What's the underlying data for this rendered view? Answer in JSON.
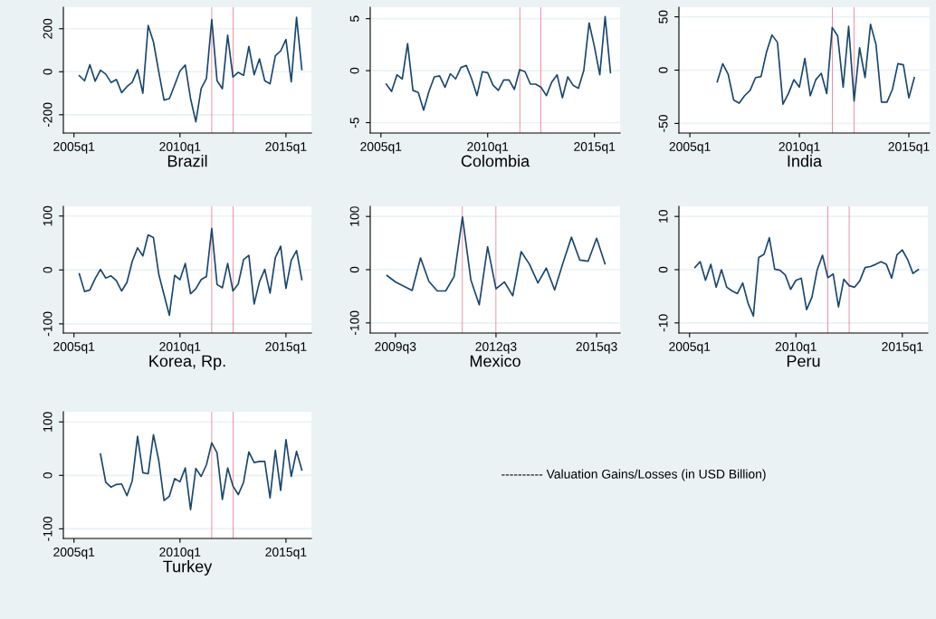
{
  "chart_data": [
    {
      "type": "line",
      "xlabel": "Brazil",
      "color": "#1a476f",
      "grid": "y",
      "ylim": [
        -285,
        300
      ],
      "yticks": [
        -200,
        0,
        200
      ],
      "categories": [
        "2005q1",
        null,
        null,
        null,
        null,
        null,
        null,
        null,
        null,
        null,
        null,
        null,
        null,
        null,
        null,
        null,
        null,
        null,
        null,
        null,
        "2010q1",
        null,
        null,
        null,
        null,
        null,
        null,
        null,
        null,
        null,
        null,
        null,
        null,
        null,
        null,
        null,
        null,
        null,
        null,
        null,
        "2015q1",
        null,
        null,
        null
      ],
      "values": [
        null,
        -18,
        -42,
        33,
        -44,
        7,
        -11,
        -50,
        -36,
        -97,
        -69,
        -49,
        10,
        -100,
        215,
        139,
        0,
        -132,
        -125,
        -62,
        3,
        31,
        -125,
        -233,
        -78,
        -31,
        243,
        -42,
        -79,
        170,
        -25,
        -3,
        -17,
        118,
        -14,
        60,
        -42,
        -56,
        74,
        97,
        150,
        -47,
        253,
        10
      ]
    },
    {
      "type": "line",
      "xlabel": "Colombia",
      "color": "#1a476f",
      "grid": "y",
      "ylim": [
        -6,
        6.1
      ],
      "yticks": [
        -5,
        0,
        5
      ],
      "categories": [
        "2005q1",
        null,
        null,
        null,
        null,
        null,
        null,
        null,
        null,
        null,
        null,
        null,
        null,
        null,
        null,
        null,
        null,
        null,
        null,
        null,
        "2010q1",
        null,
        null,
        null,
        null,
        null,
        null,
        null,
        null,
        null,
        null,
        null,
        null,
        null,
        null,
        null,
        null,
        null,
        null,
        null,
        "2015q1",
        null,
        null,
        null
      ],
      "values": [
        null,
        -1.3,
        -2.0,
        -0.4,
        -0.8,
        2.6,
        -1.9,
        -2.1,
        -3.8,
        -2.0,
        -0.6,
        -0.5,
        -1.6,
        -0.3,
        -0.8,
        0.3,
        0.5,
        -0.8,
        -2.4,
        -0.1,
        -0.2,
        -1.4,
        -1.9,
        -0.9,
        -0.9,
        -1.8,
        0.1,
        -0.1,
        -1.3,
        -1.3,
        -1.6,
        -2.4,
        -1.1,
        -0.4,
        -2.6,
        -0.6,
        -1.4,
        -1.7,
        0,
        4.6,
        2.3,
        -0.4,
        5.2,
        -0.2
      ]
    },
    {
      "type": "line",
      "xlabel": "India",
      "color": "#1a476f",
      "grid": "y",
      "ylim": [
        -59,
        59
      ],
      "yticks": [
        -50,
        0,
        50
      ],
      "categories": [
        "2005q1",
        null,
        null,
        null,
        null,
        null,
        null,
        null,
        null,
        null,
        null,
        null,
        null,
        null,
        null,
        null,
        null,
        null,
        null,
        null,
        "2010q1",
        null,
        null,
        null,
        null,
        null,
        null,
        null,
        null,
        null,
        null,
        null,
        null,
        null,
        null,
        null,
        null,
        null,
        null,
        null,
        "2015q1",
        null,
        null
      ],
      "values": [
        null,
        null,
        null,
        null,
        null,
        -11,
        6,
        -4,
        -28,
        -31,
        -24,
        -19,
        -7,
        -6,
        17,
        33,
        26,
        -32,
        -22,
        -9,
        -16,
        11,
        -24,
        -9,
        -3,
        -22,
        40,
        32,
        -16,
        41,
        -29,
        21,
        -7,
        43,
        24,
        -30,
        -30,
        -18,
        6,
        5,
        -26,
        -7,
        null
      ]
    },
    {
      "type": "line",
      "xlabel": "Korea, Rp.",
      "color": "#1a476f",
      "grid": "y",
      "ylim": [
        -117,
        118
      ],
      "yticks": [
        -100,
        0,
        100
      ],
      "categories": [
        "2005q1",
        null,
        null,
        null,
        null,
        null,
        null,
        null,
        null,
        null,
        null,
        null,
        null,
        null,
        null,
        null,
        null,
        null,
        null,
        null,
        "2010q1",
        null,
        null,
        null,
        null,
        null,
        null,
        null,
        null,
        null,
        null,
        null,
        null,
        null,
        null,
        null,
        null,
        null,
        null,
        null,
        "2015q1",
        null,
        null,
        null
      ],
      "values": [
        null,
        -7,
        -40,
        -37,
        -16,
        1,
        -15,
        -11,
        -20,
        -39,
        -23,
        16,
        41,
        26,
        65,
        60,
        -8,
        -46,
        -84,
        -10,
        -18,
        12,
        -44,
        -35,
        -18,
        -12,
        77,
        -27,
        -33,
        12,
        -39,
        -26,
        19,
        27,
        -63,
        -22,
        1,
        -43,
        23,
        44,
        -34,
        18,
        36,
        -18
      ]
    },
    {
      "type": "line",
      "xlabel": "Mexico",
      "color": "#1a476f",
      "grid": "y",
      "ylim": [
        -119,
        119
      ],
      "yticks": [
        -100,
        0,
        100
      ],
      "categories": [
        null,
        "2009q3",
        null,
        null,
        null,
        null,
        null,
        null,
        null,
        null,
        null,
        null,
        null,
        "2012q3",
        null,
        null,
        null,
        null,
        null,
        null,
        null,
        null,
        null,
        null,
        null,
        "2015q3",
        null
      ],
      "values": [
        -11,
        -23,
        -31,
        -39,
        22,
        -22,
        -40,
        -40,
        -13,
        99,
        -19,
        -66,
        43,
        -36,
        -23,
        -49,
        34,
        10,
        -25,
        3,
        -38,
        13,
        61,
        18,
        16,
        59,
        11
      ]
    },
    {
      "type": "line",
      "xlabel": "Peru",
      "color": "#1a476f",
      "grid": "y",
      "ylim": [
        -11.9,
        11.9
      ],
      "yticks": [
        -10,
        0,
        10
      ],
      "categories": [
        "2005q1",
        null,
        null,
        null,
        null,
        null,
        null,
        null,
        null,
        null,
        null,
        null,
        null,
        null,
        null,
        null,
        null,
        null,
        null,
        null,
        "2010q1",
        null,
        null,
        null,
        null,
        null,
        null,
        null,
        null,
        null,
        null,
        null,
        null,
        null,
        null,
        null,
        null,
        null,
        null,
        null,
        "2015q1",
        null,
        null,
        null
      ],
      "values": [
        null,
        0.4,
        1.5,
        -2,
        1,
        -3.3,
        0,
        -3.3,
        -4,
        -4.5,
        -2.5,
        -6.3,
        -8.7,
        2.3,
        2.9,
        6,
        0.1,
        -0.1,
        -1,
        -3.7,
        -2,
        -1.6,
        -7.5,
        -5.2,
        0,
        2.7,
        -1.5,
        -0.8,
        -7,
        -1.8,
        -3,
        -3.3,
        -2.1,
        0.4,
        0.6,
        1,
        1.5,
        1,
        -1.6,
        2.8,
        3.7,
        1.9,
        -0.7,
        0
      ]
    },
    {
      "type": "line",
      "xlabel": "Turkey",
      "color": "#1a476f",
      "grid": "y",
      "ylim": [
        -118,
        119
      ],
      "yticks": [
        -100,
        0,
        100
      ],
      "categories": [
        "2005q1",
        null,
        null,
        null,
        null,
        null,
        null,
        null,
        null,
        null,
        null,
        null,
        null,
        null,
        null,
        null,
        null,
        null,
        null,
        null,
        "2010q1",
        null,
        null,
        null,
        null,
        null,
        null,
        null,
        null,
        null,
        null,
        null,
        null,
        null,
        null,
        null,
        null,
        null,
        null,
        null,
        "2015q1",
        null,
        null,
        null
      ],
      "values": [
        null,
        null,
        null,
        null,
        null,
        40,
        -13,
        -22,
        -17,
        -16,
        -38,
        -10,
        73,
        5,
        3,
        76,
        28,
        -47,
        -39,
        -6,
        -12,
        14,
        -64,
        13,
        -2,
        20,
        61,
        42,
        -45,
        14,
        -20,
        -36,
        -13,
        44,
        24,
        26,
        26,
        -42,
        47,
        -28,
        67,
        -2,
        45,
        10
      ]
    },
    {
      "type": "other",
      "annotations": [
        "---------- Valuation Gains/Losses (in USD Billion)"
      ]
    }
  ]
}
